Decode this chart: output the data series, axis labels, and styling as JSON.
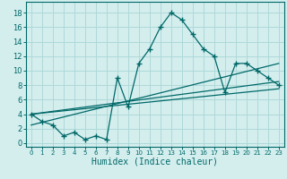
{
  "xlabel": "Humidex (Indice chaleur)",
  "background_color": "#d4eeee",
  "grid_color": "#aed8d8",
  "line_color": "#006868",
  "xlim": [
    -0.5,
    23.5
  ],
  "ylim": [
    -0.5,
    19.5
  ],
  "xticks": [
    0,
    1,
    2,
    3,
    4,
    5,
    6,
    7,
    8,
    9,
    10,
    11,
    12,
    13,
    14,
    15,
    16,
    17,
    18,
    19,
    20,
    21,
    22,
    23
  ],
  "yticks": [
    0,
    2,
    4,
    6,
    8,
    10,
    12,
    14,
    16,
    18
  ],
  "main_x": [
    0,
    1,
    2,
    3,
    4,
    5,
    6,
    7,
    8,
    9,
    10,
    11,
    12,
    13,
    14,
    15,
    16,
    17,
    18,
    19,
    20,
    21,
    22,
    23
  ],
  "main_y": [
    4,
    3,
    2.5,
    1,
    1.5,
    0.5,
    1,
    0.5,
    9,
    5,
    11,
    13,
    16,
    18,
    17,
    15,
    13,
    12,
    7,
    11,
    11,
    10,
    9,
    8
  ],
  "line1_x": [
    0,
    23
  ],
  "line1_y": [
    4,
    7.5
  ],
  "line2_x": [
    0,
    23
  ],
  "line2_y": [
    2.5,
    11
  ],
  "line3_x": [
    0,
    23
  ],
  "line3_y": [
    4,
    8.5
  ]
}
